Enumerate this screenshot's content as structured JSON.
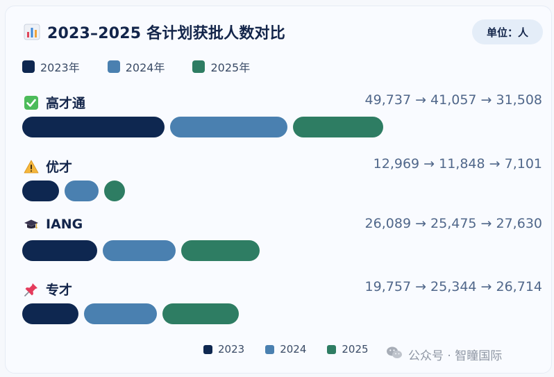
{
  "title": "2023–2025 各计划获批人数对比",
  "unit_badge": "单位：人",
  "arrow": "→",
  "legend_top": [
    "2023年",
    "2024年",
    "2025年"
  ],
  "legend_bottom": [
    "2023",
    "2024",
    "2025"
  ],
  "colors": {
    "2023": "#0e2750",
    "2024": "#4a80b0",
    "2025": "#2e7d63"
  },
  "watermark": "公众号 · 智瞳国际",
  "chart_data": {
    "type": "bar",
    "title": "2023–2025 各计划获批人数对比",
    "unit": "人",
    "series": [
      {
        "name": "2023年",
        "values": [
          49737,
          12969,
          26089,
          19757
        ]
      },
      {
        "name": "2024年",
        "values": [
          41057,
          11848,
          25475,
          25344
        ]
      },
      {
        "name": "2025年",
        "values": [
          31508,
          7101,
          27630,
          26714
        ]
      }
    ],
    "categories": [
      "高才通",
      "优才",
      "IANG",
      "专才"
    ],
    "category_icons": [
      "check-mark-icon",
      "warning-icon",
      "graduation-cap-icon",
      "pushpin-icon"
    ],
    "value_labels": [
      [
        "49,737",
        "41,057",
        "31,508"
      ],
      [
        "12,969",
        "11,848",
        "7,101"
      ],
      [
        "26,089",
        "25,475",
        "27,630"
      ],
      [
        "19,757",
        "25,344",
        "26,714"
      ]
    ],
    "legend_position": "top and bottom",
    "grid": false
  }
}
